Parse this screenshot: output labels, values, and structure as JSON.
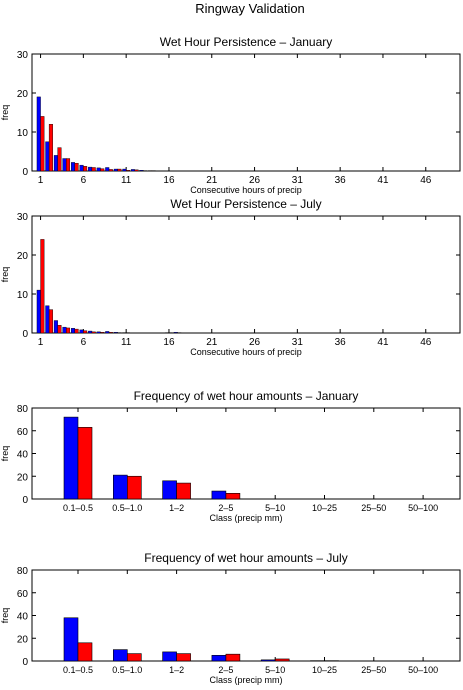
{
  "figure_title": "Ringway Validation",
  "colors": {
    "series_a": "#0000ff",
    "series_b": "#ff0000",
    "axes": "#000000"
  },
  "chart_data": [
    {
      "type": "bar",
      "title": "Wet Hour Persistence – January",
      "xlabel": "Consecutive hours of precip",
      "ylabel": "freq",
      "ylim": [
        0,
        30
      ],
      "yticks": [
        0,
        10,
        20,
        30
      ],
      "xlim": [
        0,
        50
      ],
      "xticks": [
        1,
        6,
        11,
        16,
        21,
        26,
        31,
        36,
        41,
        46
      ],
      "x": [
        1,
        2,
        3,
        4,
        5,
        6,
        7,
        8,
        9,
        10,
        11,
        12,
        13,
        14
      ],
      "series": [
        {
          "values": [
            19,
            7.5,
            4,
            3.2,
            2.2,
            1.5,
            1.0,
            0.8,
            0.9,
            0.5,
            0.5,
            0.4,
            0.2,
            0.1
          ]
        },
        {
          "values": [
            14,
            12,
            6,
            3.2,
            2.0,
            1.2,
            0.9,
            0.6,
            0.4,
            0.5,
            0.2,
            0.3,
            0.1,
            0.1
          ]
        }
      ]
    },
    {
      "type": "bar",
      "title": "Wet Hour Persistence – July",
      "xlabel": "Consecutive hours of precip",
      "ylabel": "freq",
      "ylim": [
        0,
        30
      ],
      "yticks": [
        0,
        10,
        20,
        30
      ],
      "xlim": [
        0,
        50
      ],
      "xticks": [
        1,
        6,
        11,
        16,
        21,
        26,
        31,
        36,
        41,
        46
      ],
      "x": [
        1,
        2,
        3,
        4,
        5,
        6,
        7,
        8,
        9,
        10,
        11,
        16,
        17
      ],
      "series": [
        {
          "values": [
            11,
            7,
            3.2,
            1.5,
            1.2,
            0.8,
            0.5,
            0.3,
            0.4,
            0.2,
            0.1,
            0.1,
            0.2
          ]
        },
        {
          "values": [
            24,
            6,
            2.0,
            1.3,
            1.0,
            0.6,
            0.3,
            0.2,
            0.2,
            0.1,
            0.1,
            0.1,
            0.1
          ]
        }
      ]
    },
    {
      "type": "bar",
      "title": "Frequency of wet hour amounts – January",
      "xlabel": "Class (precip mm)",
      "ylabel": "freq",
      "ylim": [
        0,
        80
      ],
      "yticks": [
        0,
        20,
        40,
        60,
        80
      ],
      "categories": [
        "0.1–0.5",
        "0.5–1.0",
        "1–2",
        "2–5",
        "5–10",
        "10–25",
        "25–50",
        "50–100"
      ],
      "series": [
        {
          "values": [
            72,
            21,
            16,
            7,
            0,
            0,
            0,
            0
          ]
        },
        {
          "values": [
            63,
            20,
            14,
            5,
            0,
            0,
            0,
            0
          ]
        }
      ]
    },
    {
      "type": "bar",
      "title": "Frequency of wet hour amounts – July",
      "xlabel": "Class (precip mm)",
      "ylabel": "freq",
      "ylim": [
        0,
        80
      ],
      "yticks": [
        0,
        20,
        40,
        60,
        80
      ],
      "categories": [
        "0.1–0.5",
        "0.5–1.0",
        "1–2",
        "2–5",
        "5–10",
        "10–25",
        "25–50",
        "50–100"
      ],
      "series": [
        {
          "values": [
            38,
            10,
            8,
            5,
            1,
            0.3,
            0,
            0
          ]
        },
        {
          "values": [
            16,
            6.5,
            6.5,
            6,
            1.8,
            0.3,
            0,
            0
          ]
        }
      ]
    }
  ]
}
